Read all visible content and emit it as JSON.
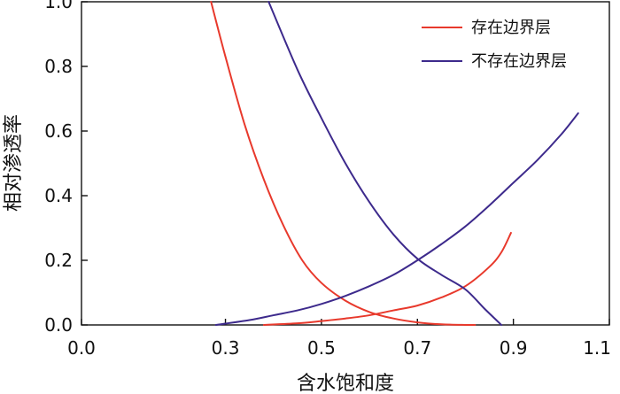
{
  "chart_data": {
    "type": "line",
    "xlabel": "含水饱和度",
    "ylabel": "相对渗透率",
    "xlim": [
      0.0,
      1.1
    ],
    "ylim": [
      0.0,
      1.0
    ],
    "xticks": [
      0.0,
      0.3,
      0.5,
      0.7,
      0.9,
      1.1
    ],
    "xtick_labels": [
      "0.0",
      "0.3",
      "0.5",
      "0.7",
      "0.9",
      "1.1"
    ],
    "yticks": [
      0.0,
      0.2,
      0.4,
      0.6,
      0.8,
      1.0
    ],
    "ytick_labels": [
      "0.0",
      "0.2",
      "0.4",
      "0.6",
      "0.8",
      "1.0"
    ],
    "grid": false,
    "legend_position": "top-right",
    "series": [
      {
        "name": "存在边界层",
        "color": "#e8392c",
        "segments": [
          {
            "x": [
              0.27,
              0.3,
              0.34,
              0.38,
              0.42,
              0.46,
              0.5,
              0.55,
              0.6,
              0.65,
              0.7,
              0.75,
              0.8,
              0.82
            ],
            "y": [
              1.0,
              0.83,
              0.62,
              0.45,
              0.31,
              0.2,
              0.13,
              0.075,
              0.04,
              0.02,
              0.008,
              0.002,
              0.0,
              0.0
            ]
          },
          {
            "x": [
              0.38,
              0.45,
              0.5,
              0.55,
              0.6,
              0.65,
              0.7,
              0.75,
              0.8,
              0.85,
              0.875,
              0.895
            ],
            "y": [
              0.0,
              0.005,
              0.012,
              0.02,
              0.03,
              0.045,
              0.06,
              0.085,
              0.12,
              0.18,
              0.225,
              0.285
            ]
          }
        ]
      },
      {
        "name": "不存在边界层",
        "color": "#3d2a8c",
        "segments": [
          {
            "x": [
              0.39,
              0.45,
              0.5,
              0.55,
              0.6,
              0.65,
              0.7,
              0.75,
              0.8,
              0.84,
              0.875
            ],
            "y": [
              1.0,
              0.79,
              0.64,
              0.5,
              0.38,
              0.28,
              0.205,
              0.155,
              0.11,
              0.05,
              0.0
            ]
          },
          {
            "x": [
              0.28,
              0.35,
              0.4,
              0.45,
              0.5,
              0.55,
              0.6,
              0.65,
              0.7,
              0.75,
              0.8,
              0.85,
              0.9,
              0.95,
              1.0,
              1.035
            ],
            "y": [
              0.0,
              0.015,
              0.03,
              0.045,
              0.065,
              0.09,
              0.12,
              0.155,
              0.2,
              0.25,
              0.305,
              0.37,
              0.44,
              0.51,
              0.59,
              0.655
            ]
          }
        ]
      }
    ]
  }
}
